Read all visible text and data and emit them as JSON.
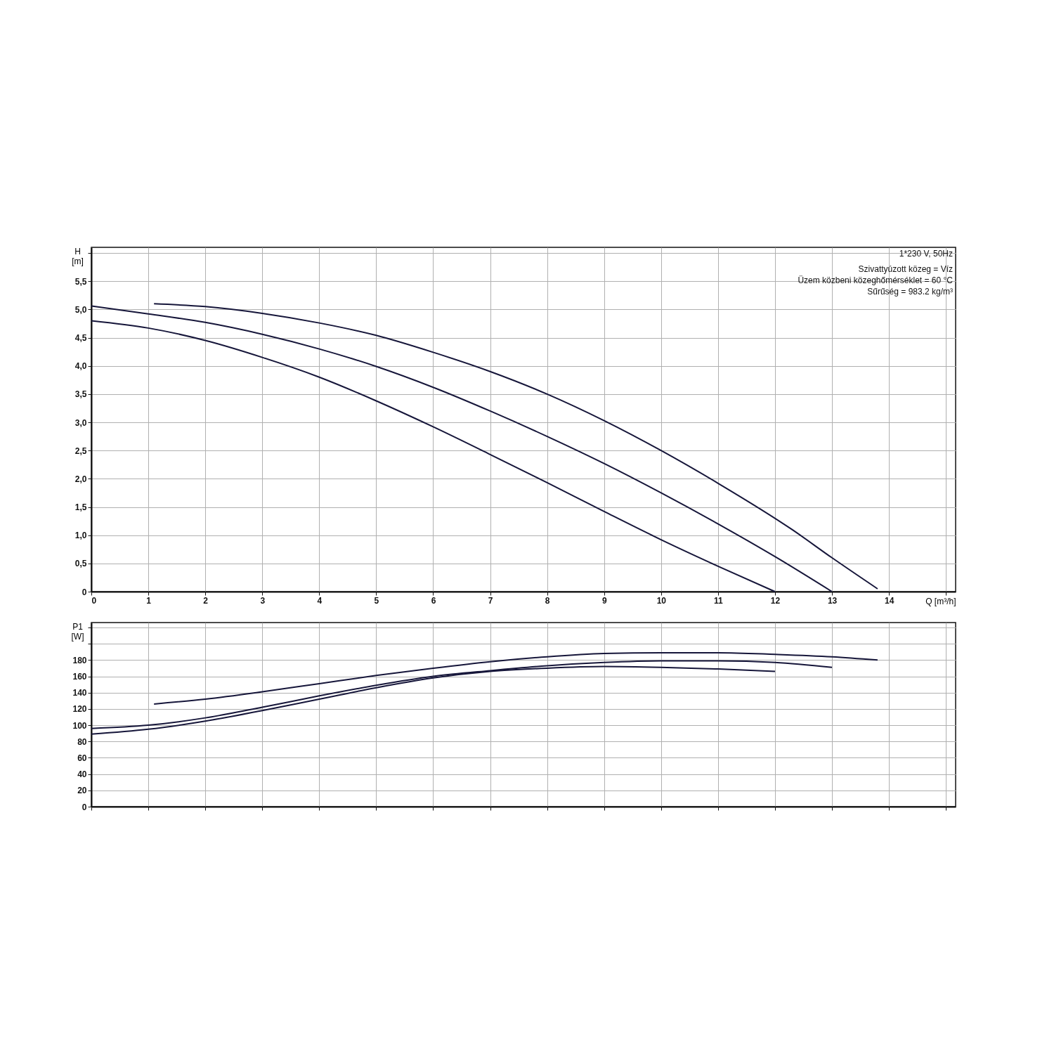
{
  "chart_data": [
    {
      "type": "line",
      "ylabel": "H\n[m]",
      "xlabel": "Q [m³/h]",
      "legend": false,
      "grid": true,
      "marker": "none",
      "line_style": "solid",
      "annotations": [
        "1*230 V, 50Hz",
        "Szivattyúzott közeg = Víz",
        "Üzem közbeni közeghőmérséklet = 60 °C",
        "Sűrűség = 983.2 kg/m³"
      ],
      "xlim": [
        0,
        15.17
      ],
      "xticks": [
        0,
        1,
        2,
        3,
        4,
        5,
        6,
        7,
        8,
        9,
        10,
        11,
        12,
        13,
        14,
        {
          "value": 15,
          "label": null
        }
      ],
      "ylim": [
        0,
        6.1
      ],
      "yticks": [
        0,
        {
          "value": 0.5,
          "label": "0,5"
        },
        {
          "value": 1,
          "label": "1,0"
        },
        {
          "value": 1.5,
          "label": "1,5"
        },
        {
          "value": 2,
          "label": "2,0"
        },
        {
          "value": 2.5,
          "label": "2,5"
        },
        {
          "value": 3,
          "label": "3,0"
        },
        {
          "value": 3.5,
          "label": "3,5"
        },
        {
          "value": 4,
          "label": "4,0"
        },
        {
          "value": 4.5,
          "label": "4,5"
        },
        {
          "value": 5,
          "label": "5,0"
        },
        {
          "value": 5.5,
          "label": "5,5"
        },
        {
          "value": 6,
          "label": null
        }
      ],
      "series": [
        {
          "color": "#16163a",
          "x": [
            1.1,
            2,
            3,
            4,
            5,
            6,
            7,
            8,
            9,
            10,
            11,
            12.3,
            13,
            13.8
          ],
          "values": [
            5.1,
            5.05,
            4.93,
            4.76,
            4.54,
            4.24,
            3.9,
            3.5,
            3.03,
            2.5,
            1.92,
            1.1,
            0.6,
            0.05
          ]
        },
        {
          "color": "#16163a",
          "x": [
            0,
            1,
            2,
            3,
            4,
            5,
            6,
            7,
            8,
            9,
            10,
            11,
            12,
            13
          ],
          "values": [
            5.06,
            4.92,
            4.77,
            4.56,
            4.3,
            3.99,
            3.62,
            3.2,
            2.75,
            2.27,
            1.75,
            1.2,
            0.62,
            0
          ]
        },
        {
          "color": "#16163a",
          "x": [
            0,
            1,
            2,
            3,
            4,
            5,
            6,
            7,
            8,
            9,
            10,
            11,
            12
          ],
          "values": [
            4.8,
            4.67,
            4.45,
            4.15,
            3.8,
            3.38,
            2.92,
            2.43,
            1.93,
            1.42,
            0.92,
            0.45,
            0
          ]
        }
      ]
    },
    {
      "type": "line",
      "ylabel": "P1\n[W]",
      "legend": false,
      "grid": true,
      "marker": "none",
      "line_style": "solid",
      "tick_labels": "y",
      "xlim": [
        0,
        15.17
      ],
      "xticks": [
        0,
        1,
        2,
        3,
        4,
        5,
        6,
        7,
        8,
        9,
        10,
        11,
        12,
        13,
        14,
        15
      ],
      "ylim": [
        0,
        226
      ],
      "yticks": [
        0,
        20,
        40,
        60,
        80,
        100,
        120,
        140,
        160,
        180,
        {
          "value": 200,
          "label": null
        },
        {
          "value": 220,
          "label": null
        }
      ],
      "series": [
        {
          "color": "#16163a",
          "x": [
            1.1,
            2,
            3,
            4,
            5,
            6,
            7,
            8,
            9,
            10,
            11,
            12,
            13,
            13.8
          ],
          "values": [
            126,
            132,
            141,
            151,
            161,
            170,
            178,
            184,
            188,
            189,
            189,
            187,
            184,
            180
          ]
        },
        {
          "color": "#16163a",
          "x": [
            0,
            1,
            2,
            3,
            4,
            5,
            6,
            7,
            8,
            9,
            10,
            11,
            12,
            13
          ],
          "values": [
            96,
            100,
            109,
            122,
            136,
            149,
            160,
            167,
            173,
            177,
            179,
            179,
            177,
            171
          ]
        },
        {
          "color": "#16163a",
          "x": [
            0,
            1,
            2,
            3,
            4,
            5,
            6,
            7,
            8,
            9,
            10,
            11,
            12
          ],
          "values": [
            89,
            95,
            105,
            118,
            132,
            146,
            158,
            166,
            170,
            172,
            171,
            169,
            166
          ]
        }
      ]
    }
  ]
}
